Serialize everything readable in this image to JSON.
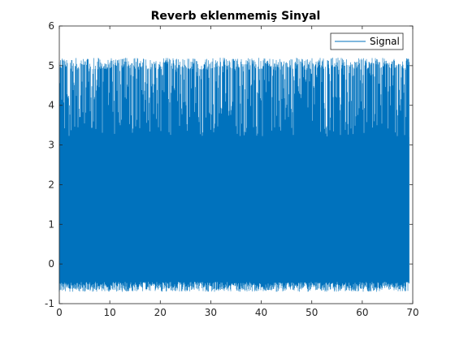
{
  "chart_data": {
    "type": "line",
    "title": "Reverb eklenmemiş Sinyal",
    "xlabel": "",
    "ylabel": "",
    "xlim": [
      0,
      70
    ],
    "ylim": [
      -1,
      6
    ],
    "xticks": [
      0,
      10,
      20,
      30,
      40,
      50,
      60,
      70
    ],
    "yticks": [
      -1,
      0,
      1,
      2,
      3,
      4,
      5,
      6
    ],
    "xtick_labels": [
      "0",
      "10",
      "20",
      "30",
      "40",
      "50",
      "60",
      "70"
    ],
    "ytick_labels": [
      "-1",
      "0",
      "1",
      "2",
      "3",
      "4",
      "5",
      "6"
    ],
    "grid": false,
    "legend_position": "top-right",
    "series": [
      {
        "name": "Signal",
        "color": "#0072BD",
        "x_range": [
          0,
          69.3
        ],
        "y_max": 5.2,
        "y_min": -0.7,
        "description_dense": true
      }
    ]
  }
}
